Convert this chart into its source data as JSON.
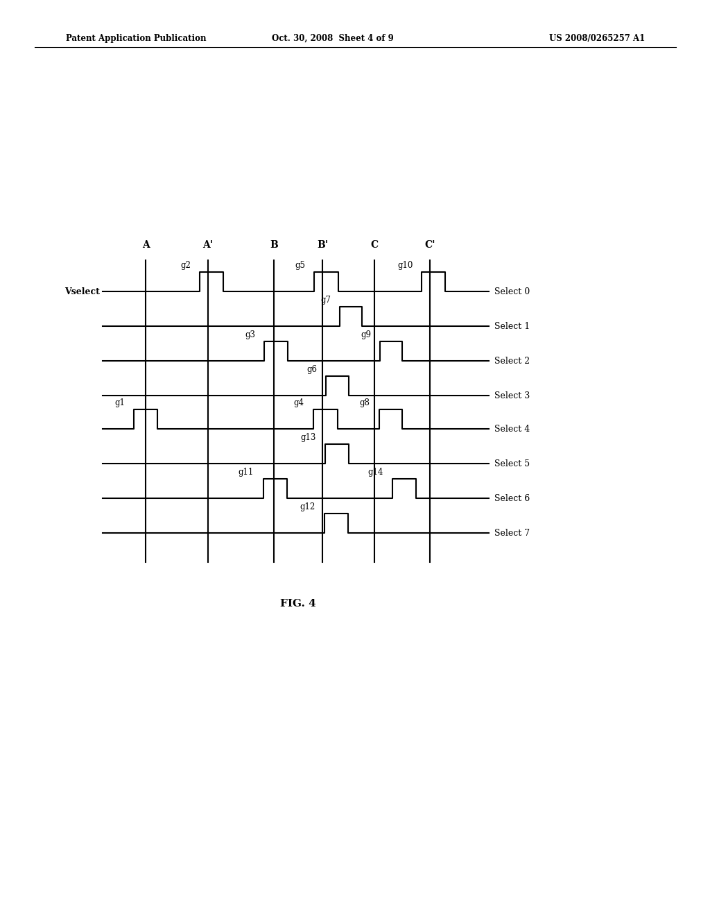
{
  "title": "FIG. 4",
  "header_left": "Patent Application Publication",
  "header_mid": "Oct. 30, 2008  Sheet 4 of 9",
  "header_right": "US 2008/0265257 A1",
  "col_labels": [
    "A",
    "A'",
    "B",
    "B'",
    "C",
    "C'"
  ],
  "background": "#ffffff",
  "line_color": "#000000",
  "font_size_header": 8.5,
  "font_size_label": 9,
  "font_size_gate": 8.5,
  "font_size_col": 10,
  "font_size_title": 11,
  "font_size_vselect": 9
}
